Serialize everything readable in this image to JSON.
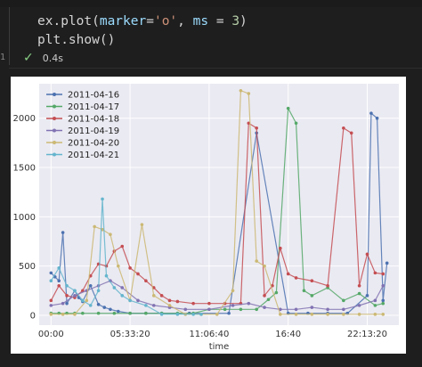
{
  "code": {
    "line1": {
      "a": "ex.plot(",
      "b": "marker",
      "c": "=",
      "d": "'o'",
      "e": ", ",
      "f": "ms",
      "g": " = ",
      "h": "3",
      "i": ")"
    },
    "line2": "plt.show()"
  },
  "cell": {
    "line_number": "1",
    "exec_time": "0.4s"
  },
  "icons": {
    "check": "check-icon"
  },
  "colors": {
    "background": "#1e1e1e",
    "plot_bg": "#eaeaf2",
    "series": [
      "#4c72b0",
      "#55a868",
      "#c44e52",
      "#8172b2",
      "#ccb974",
      "#64b5cd"
    ]
  },
  "chart_data": {
    "type": "scatter",
    "xlabel": "time",
    "ylim": [
      -100,
      2350
    ],
    "yticks": [
      0,
      500,
      1000,
      1500,
      2000
    ],
    "ytick_labels": [
      "0",
      "500",
      "1000",
      "1500",
      "2000"
    ],
    "xticks": [
      0,
      20000,
      40000,
      60000,
      80000
    ],
    "xtick_labels": [
      "00:00",
      "05:33:20",
      "11:06:40",
      "16:40",
      "22:13:20"
    ],
    "xlim": [
      -3000,
      88000
    ],
    "legend_position": "top-left",
    "grid": true,
    "series": [
      {
        "name": "2011-04-16",
        "color": "#4c72b0",
        "x": [
          0,
          1000,
          2000,
          3000,
          4000,
          6000,
          7000,
          8000,
          10000,
          12000,
          13500,
          15000,
          17000,
          20000,
          24000,
          28000,
          35000,
          45000,
          52000,
          60000,
          65000,
          70000,
          75000,
          80000,
          81000,
          82500,
          84000,
          85000
        ],
        "y": [
          430,
          390,
          350,
          840,
          120,
          250,
          180,
          140,
          300,
          110,
          80,
          60,
          40,
          20,
          20,
          20,
          20,
          20,
          1850,
          20,
          20,
          20,
          20,
          200,
          2050,
          2000,
          150,
          530
        ]
      },
      {
        "name": "2011-04-17",
        "color": "#55a868",
        "x": [
          0,
          2000,
          4000,
          6000,
          8000,
          12000,
          16000,
          20000,
          24000,
          28000,
          32000,
          36000,
          40000,
          44000,
          48000,
          52000,
          55000,
          57000,
          60000,
          62000,
          64000,
          66000,
          70000,
          74000,
          78000,
          82000,
          84000
        ],
        "y": [
          20,
          20,
          20,
          20,
          20,
          20,
          20,
          20,
          20,
          20,
          20,
          20,
          60,
          60,
          60,
          60,
          160,
          230,
          2100,
          1950,
          250,
          200,
          280,
          150,
          220,
          100,
          120
        ]
      },
      {
        "name": "2011-04-18",
        "color": "#c44e52",
        "x": [
          0,
          2000,
          4000,
          6000,
          8000,
          10000,
          12000,
          14000,
          16000,
          18000,
          20000,
          22000,
          24000,
          26000,
          28000,
          30000,
          32000,
          36000,
          40000,
          44000,
          48000,
          50000,
          52000,
          54000,
          56000,
          58000,
          60000,
          62000,
          66000,
          70000,
          74000,
          76000,
          78000,
          80000,
          82000,
          84000
        ],
        "y": [
          150,
          300,
          200,
          180,
          250,
          400,
          520,
          500,
          650,
          700,
          480,
          420,
          350,
          280,
          200,
          150,
          140,
          120,
          120,
          120,
          120,
          1950,
          1900,
          200,
          300,
          680,
          420,
          380,
          350,
          300,
          1900,
          1850,
          300,
          620,
          430,
          420
        ]
      },
      {
        "name": "2011-04-19",
        "color": "#8172b2",
        "x": [
          0,
          3000,
          6000,
          9000,
          12000,
          15000,
          18000,
          22000,
          26000,
          30000,
          34000,
          40000,
          46000,
          50000,
          54000,
          58000,
          62000,
          66000,
          70000,
          74000,
          78000,
          82000,
          84000
        ],
        "y": [
          100,
          120,
          200,
          250,
          300,
          350,
          280,
          150,
          100,
          80,
          60,
          60,
          100,
          120,
          80,
          60,
          60,
          80,
          60,
          60,
          100,
          150,
          300
        ]
      },
      {
        "name": "2011-04-20",
        "color": "#ccb974",
        "x": [
          0,
          3000,
          6000,
          9000,
          11000,
          13000,
          15000,
          17000,
          20000,
          23000,
          26000,
          30000,
          34000,
          38000,
          42000,
          46000,
          48000,
          50000,
          52000,
          54000,
          58000,
          62000,
          66000,
          70000,
          74000,
          78000,
          82000,
          84000
        ],
        "y": [
          10,
          10,
          10,
          150,
          900,
          870,
          820,
          500,
          150,
          920,
          200,
          100,
          10,
          10,
          10,
          250,
          2280,
          2250,
          550,
          500,
          10,
          10,
          10,
          10,
          10,
          10,
          10,
          10
        ]
      },
      {
        "name": "2011-04-21",
        "color": "#64b5cd",
        "x": [
          0,
          2000,
          4000,
          6000,
          8000,
          10000,
          12000,
          13000,
          14000,
          16000,
          18000,
          20000,
          24000,
          28000,
          32000,
          36000,
          38000
        ],
        "y": [
          350,
          480,
          300,
          250,
          150,
          100,
          250,
          1180,
          400,
          280,
          200,
          150,
          100,
          10,
          10,
          10,
          10
        ]
      }
    ]
  }
}
